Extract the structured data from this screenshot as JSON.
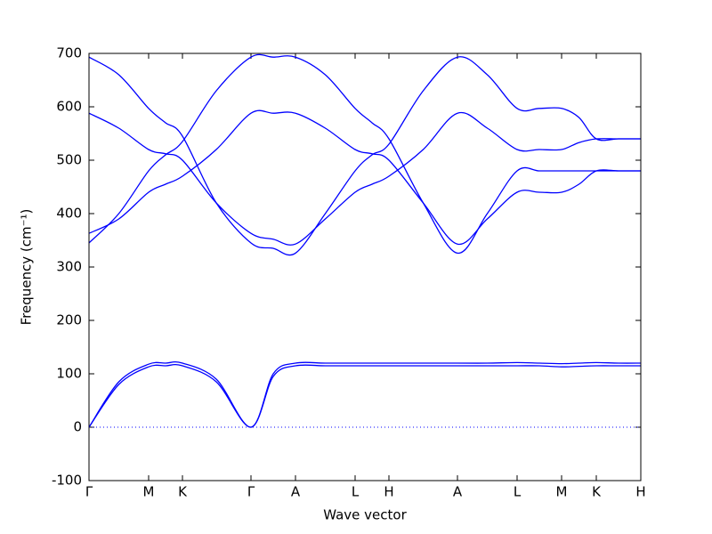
{
  "chart_data": {
    "type": "line",
    "xlabel": "Wave vector",
    "ylabel": "Frequency (cm⁻¹)",
    "x": [
      0,
      0.335,
      0.67,
      0.86,
      1.05,
      1.43,
      1.82,
      2.07,
      2.32,
      2.655,
      2.99,
      3.18,
      3.37,
      3.755,
      4.14,
      4.475,
      4.81,
      5.06,
      5.31,
      5.505,
      5.7,
      5.95,
      6.2
    ],
    "series": [
      {
        "color": "#0000ff",
        "values": [
          693,
          660,
          597,
          570,
          545,
          420,
          345,
          335,
          326,
          400,
          480,
          510,
          530,
          630,
          693,
          660,
          597,
          597,
          597,
          580,
          540,
          540,
          540
        ]
      },
      {
        "color": "#0000ff",
        "values": [
          588,
          560,
          520,
          512,
          500,
          420,
          363,
          352,
          343,
          390,
          440,
          455,
          470,
          520,
          588,
          560,
          520,
          520,
          520,
          533,
          540,
          540,
          540
        ]
      },
      {
        "color": "#0000ff",
        "values": [
          363,
          390,
          440,
          455,
          470,
          520,
          588,
          588,
          588,
          560,
          520,
          512,
          500,
          420,
          343,
          390,
          440,
          440,
          440,
          455,
          480,
          480,
          480
        ]
      },
      {
        "color": "#0000ff",
        "values": [
          345,
          400,
          480,
          510,
          535,
          630,
          693,
          693,
          693,
          660,
          597,
          570,
          540,
          420,
          326,
          400,
          480,
          480,
          480,
          480,
          480,
          480,
          480
        ]
      },
      {
        "color": "#0000ff",
        "values": [
          0,
          80,
          113,
          115,
          115,
          85,
          0,
          95,
          115,
          115,
          115,
          115,
          115,
          115,
          115,
          115,
          115,
          115,
          113,
          114,
          115,
          115,
          115
        ]
      },
      {
        "color": "#0000ff",
        "values": [
          0,
          85,
          118,
          120,
          120,
          90,
          0,
          100,
          120,
          120,
          120,
          120,
          120,
          120,
          120,
          120,
          121,
          120,
          119,
          120,
          121,
          120,
          120
        ]
      }
    ],
    "xlim": [
      0,
      6.2
    ],
    "xticks": [
      {
        "value": 0,
        "label": "Γ"
      },
      {
        "value": 0.67,
        "label": "M"
      },
      {
        "value": 1.05,
        "label": "K"
      },
      {
        "value": 1.82,
        "label": "Γ"
      },
      {
        "value": 2.32,
        "label": "A"
      },
      {
        "value": 2.99,
        "label": "L"
      },
      {
        "value": 3.37,
        "label": "H"
      },
      {
        "value": 4.14,
        "label": "A"
      },
      {
        "value": 4.81,
        "label": "L"
      },
      {
        "value": 5.31,
        "label": "M"
      },
      {
        "value": 5.7,
        "label": "K"
      },
      {
        "value": 6.2,
        "label": "H"
      }
    ],
    "ylim": [
      -100,
      700
    ],
    "yticks": [
      -100,
      0,
      100,
      200,
      300,
      400,
      500,
      600,
      700
    ],
    "zero_line": true
  }
}
